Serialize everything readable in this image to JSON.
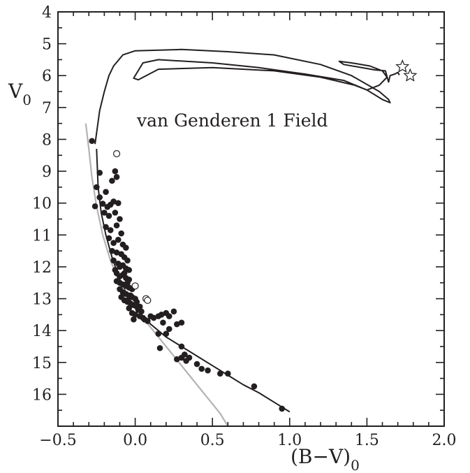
{
  "chart_data": {
    "type": "scatter",
    "xlabel": "(B−V)",
    "xlabel_sub": "0",
    "ylabel": "V",
    "ylabel_sub": "0",
    "xlim": [
      -0.5,
      2.0
    ],
    "ylim": [
      17.0,
      4.0
    ],
    "y_inverted": true,
    "xticks": [
      -0.5,
      0.0,
      0.5,
      1.0,
      1.5,
      2.0
    ],
    "xtick_labels": [
      "−0.5",
      "0.0",
      "0.5",
      "1.0",
      "1.5",
      "2.0"
    ],
    "yticks": [
      4,
      5,
      6,
      7,
      8,
      9,
      10,
      11,
      12,
      13,
      14,
      15,
      16
    ],
    "ytick_labels": [
      "4",
      "5",
      "6",
      "7",
      "8",
      "9",
      "10",
      "11",
      "12",
      "13",
      "14",
      "15",
      "16"
    ],
    "annotation": "van Genderen 1 Field",
    "grid": false,
    "colors": {
      "ink": "#231f20",
      "zams": "#b3b3b3"
    },
    "series": [
      {
        "marker": "filled-circle",
        "points": [
          [
            -0.28,
            8.05
          ],
          [
            -0.23,
            9.05
          ],
          [
            -0.25,
            9.5
          ],
          [
            -0.26,
            10.1
          ],
          [
            -0.23,
            9.82
          ],
          [
            -0.19,
            9.65
          ],
          [
            -0.15,
            9.3
          ],
          [
            -0.13,
            9.0
          ],
          [
            -0.12,
            9.18
          ],
          [
            -0.21,
            10.02
          ],
          [
            -0.18,
            10.12
          ],
          [
            -0.16,
            10.05
          ],
          [
            -0.14,
            9.95
          ],
          [
            -0.11,
            10.0
          ],
          [
            -0.2,
            10.3
          ],
          [
            -0.17,
            10.4
          ],
          [
            -0.13,
            10.3
          ],
          [
            -0.1,
            10.5
          ],
          [
            -0.19,
            10.75
          ],
          [
            -0.16,
            10.85
          ],
          [
            -0.12,
            10.7
          ],
          [
            -0.09,
            10.95
          ],
          [
            -0.17,
            11.1
          ],
          [
            -0.14,
            11.25
          ],
          [
            -0.11,
            11.15
          ],
          [
            -0.08,
            11.3
          ],
          [
            -0.06,
            11.4
          ],
          [
            -0.15,
            11.5
          ],
          [
            -0.12,
            11.55
          ],
          [
            -0.09,
            11.6
          ],
          [
            -0.07,
            11.7
          ],
          [
            -0.05,
            11.8
          ],
          [
            -0.14,
            11.8
          ],
          [
            -0.11,
            11.9
          ],
          [
            -0.1,
            12.0
          ],
          [
            -0.08,
            11.95
          ],
          [
            -0.06,
            12.05
          ],
          [
            -0.04,
            12.1
          ],
          [
            -0.13,
            12.1
          ],
          [
            -0.12,
            12.2
          ],
          [
            -0.1,
            12.3
          ],
          [
            -0.08,
            12.25
          ],
          [
            -0.06,
            12.35
          ],
          [
            -0.04,
            12.4
          ],
          [
            -0.12,
            12.45
          ],
          [
            -0.1,
            12.5
          ],
          [
            -0.08,
            12.55
          ],
          [
            -0.06,
            12.6
          ],
          [
            -0.04,
            12.65
          ],
          [
            -0.02,
            12.7
          ],
          [
            -0.1,
            12.7
          ],
          [
            -0.08,
            12.8
          ],
          [
            -0.06,
            12.85
          ],
          [
            -0.04,
            12.9
          ],
          [
            -0.02,
            12.95
          ],
          [
            0.0,
            13.0
          ],
          [
            -0.09,
            12.95
          ],
          [
            -0.07,
            13.05
          ],
          [
            -0.05,
            13.1
          ],
          [
            -0.03,
            13.15
          ],
          [
            -0.01,
            13.2
          ],
          [
            0.01,
            13.25
          ],
          [
            0.02,
            13.35
          ],
          [
            0.04,
            13.4
          ],
          [
            -0.04,
            13.3
          ],
          [
            -0.02,
            13.45
          ],
          [
            0.0,
            13.5
          ],
          [
            0.03,
            13.55
          ],
          [
            0.05,
            13.6
          ],
          [
            -0.01,
            13.65
          ],
          [
            0.06,
            13.65
          ],
          [
            0.08,
            13.7
          ],
          [
            0.1,
            13.55
          ],
          [
            0.12,
            13.6
          ],
          [
            0.15,
            13.55
          ],
          [
            0.17,
            13.5
          ],
          [
            0.2,
            13.45
          ],
          [
            0.22,
            13.55
          ],
          [
            0.25,
            13.4
          ],
          [
            0.18,
            13.75
          ],
          [
            0.27,
            13.8
          ],
          [
            0.22,
            13.95
          ],
          [
            0.3,
            13.75
          ],
          [
            0.15,
            14.1
          ],
          [
            0.2,
            14.1
          ],
          [
            0.3,
            14.5
          ],
          [
            0.16,
            14.55
          ],
          [
            0.32,
            14.75
          ],
          [
            0.3,
            14.85
          ],
          [
            0.35,
            14.85
          ],
          [
            0.27,
            14.9
          ],
          [
            0.33,
            14.95
          ],
          [
            0.4,
            15.05
          ],
          [
            0.43,
            15.2
          ],
          [
            0.47,
            15.25
          ],
          [
            0.55,
            15.35
          ],
          [
            0.6,
            15.35
          ],
          [
            0.77,
            15.75
          ],
          [
            0.95,
            16.45
          ],
          [
            -0.05,
            13.05
          ],
          [
            -0.03,
            12.9
          ],
          [
            0.01,
            13.1
          ],
          [
            0.03,
            13.25
          ],
          [
            -0.07,
            12.2
          ],
          [
            -0.05,
            12.5
          ]
        ]
      },
      {
        "marker": "open-circle",
        "points": [
          [
            -0.12,
            8.45
          ],
          [
            0.0,
            12.6
          ],
          [
            0.07,
            13.0
          ],
          [
            0.08,
            13.05
          ]
        ]
      },
      {
        "marker": "open-star",
        "points": [
          [
            1.73,
            5.72
          ],
          [
            1.78,
            6.0
          ]
        ]
      }
    ],
    "curves": [
      {
        "style": "black-isochrone",
        "points": [
          [
            -0.26,
            8.15
          ],
          [
            -0.25,
            7.8
          ],
          [
            -0.23,
            7.1
          ],
          [
            -0.2,
            6.5
          ],
          [
            -0.17,
            6.0
          ],
          [
            -0.14,
            5.7
          ],
          [
            -0.08,
            5.35
          ],
          [
            0.0,
            5.22
          ],
          [
            0.3,
            5.18
          ],
          [
            0.6,
            5.25
          ],
          [
            0.9,
            5.35
          ],
          [
            1.2,
            5.65
          ],
          [
            1.4,
            6.0
          ],
          [
            1.58,
            6.5
          ],
          [
            1.64,
            6.75
          ],
          [
            1.65,
            6.85
          ],
          [
            1.6,
            6.75
          ],
          [
            1.5,
            6.45
          ],
          [
            1.35,
            6.15
          ],
          [
            1.1,
            5.95
          ],
          [
            0.8,
            5.75
          ],
          [
            0.5,
            5.6
          ],
          [
            0.15,
            5.5
          ],
          [
            0.05,
            5.6
          ],
          [
            -0.01,
            6.08
          ],
          [
            0.02,
            6.13
          ],
          [
            0.15,
            5.8
          ],
          [
            0.5,
            5.75
          ],
          [
            0.9,
            5.85
          ],
          [
            1.2,
            6.05
          ],
          [
            1.42,
            6.3
          ],
          [
            1.5,
            6.45
          ],
          [
            1.58,
            6.3
          ],
          [
            1.63,
            6.05
          ],
          [
            1.6,
            5.85
          ],
          [
            1.52,
            5.7
          ],
          [
            1.4,
            5.6
          ],
          [
            1.32,
            5.55
          ],
          [
            1.35,
            5.65
          ],
          [
            1.55,
            5.82
          ],
          [
            1.62,
            5.85
          ],
          [
            1.64,
            6.2
          ],
          [
            1.65,
            6.0
          ],
          [
            1.68,
            5.95
          ],
          [
            1.7,
            5.9
          ],
          [
            1.71,
            5.98
          ]
        ]
      },
      {
        "style": "black-main-sequence",
        "points": [
          [
            -0.25,
            8.3
          ],
          [
            -0.24,
            9.5
          ],
          [
            -0.22,
            10.3
          ],
          [
            -0.19,
            11.0
          ],
          [
            -0.15,
            11.7
          ],
          [
            -0.1,
            12.4
          ],
          [
            -0.05,
            12.9
          ],
          [
            0.0,
            13.3
          ],
          [
            0.1,
            13.8
          ],
          [
            0.2,
            14.2
          ],
          [
            0.3,
            14.5
          ],
          [
            0.4,
            14.8
          ],
          [
            0.5,
            15.1
          ],
          [
            0.6,
            15.4
          ],
          [
            0.7,
            15.7
          ],
          [
            0.8,
            15.95
          ],
          [
            0.9,
            16.25
          ],
          [
            1.0,
            16.55
          ]
        ]
      },
      {
        "style": "grey-zams",
        "points": [
          [
            -0.32,
            7.5
          ],
          [
            -0.3,
            8.3
          ],
          [
            -0.28,
            9.2
          ],
          [
            -0.25,
            10.1
          ],
          [
            -0.21,
            11.0
          ],
          [
            -0.16,
            11.8
          ],
          [
            -0.1,
            12.5
          ],
          [
            -0.03,
            13.1
          ],
          [
            0.05,
            13.6
          ],
          [
            0.15,
            14.2
          ],
          [
            0.25,
            14.8
          ],
          [
            0.35,
            15.4
          ],
          [
            0.45,
            16.0
          ],
          [
            0.55,
            16.6
          ],
          [
            0.6,
            17.0
          ]
        ]
      }
    ]
  }
}
